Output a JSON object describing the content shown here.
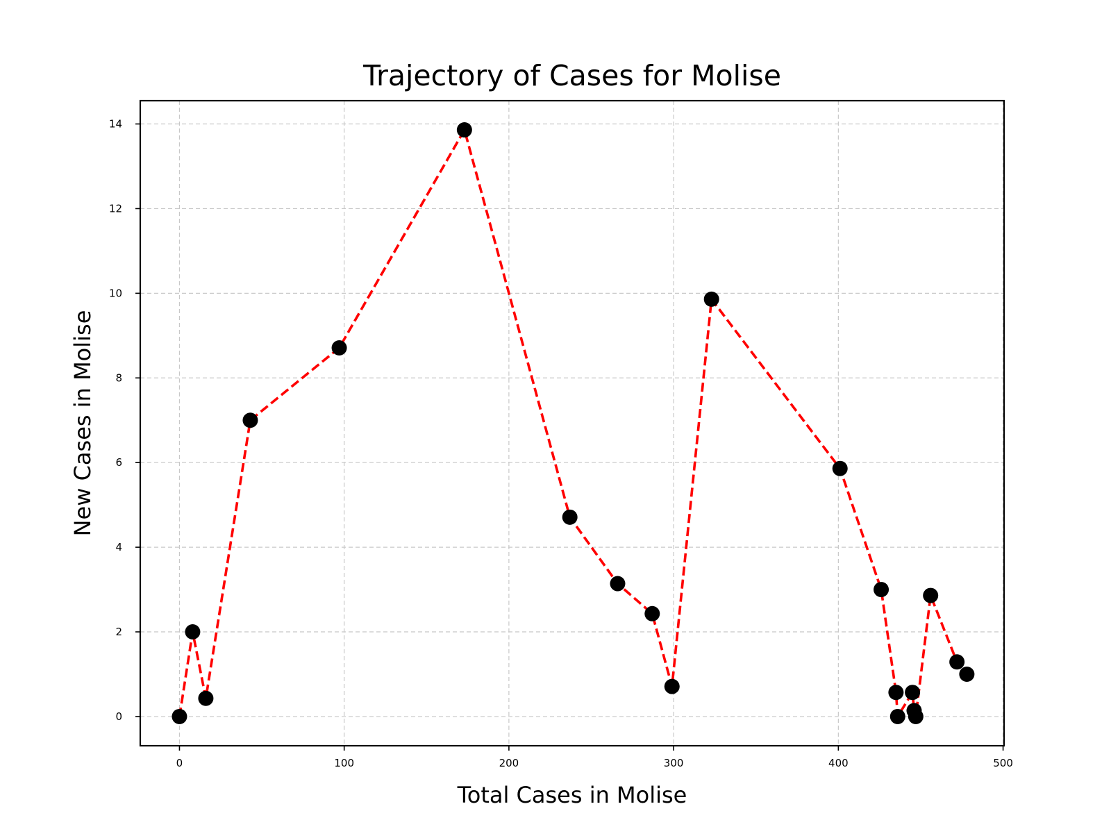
{
  "chart_data": {
    "type": "line",
    "title": "Trajectory of Cases for Molise",
    "xlabel": "Total Cases in Molise",
    "ylabel": "New Cases in Molise",
    "xlim": [
      -23.8,
      500.6
    ],
    "ylim": [
      -0.69,
      14.55
    ],
    "xticks": [
      0,
      100,
      200,
      300,
      400,
      500
    ],
    "yticks": [
      0,
      2,
      4,
      6,
      8,
      10,
      12,
      14
    ],
    "grid": true,
    "line_color": "#ff0000",
    "line_style": "dashed",
    "marker_color": "#000000",
    "series": [
      {
        "x": [
          0,
          8,
          16,
          43,
          97,
          173,
          237,
          266,
          287,
          299,
          323,
          401,
          426,
          435,
          436,
          445,
          446,
          447,
          456,
          472,
          478
        ],
        "y": [
          0,
          2,
          0.43,
          7,
          8.71,
          13.86,
          4.71,
          3.14,
          2.43,
          0.71,
          9.86,
          5.86,
          3,
          0.57,
          0,
          0.57,
          0.14,
          0,
          2.86,
          1.29,
          1
        ]
      }
    ]
  }
}
